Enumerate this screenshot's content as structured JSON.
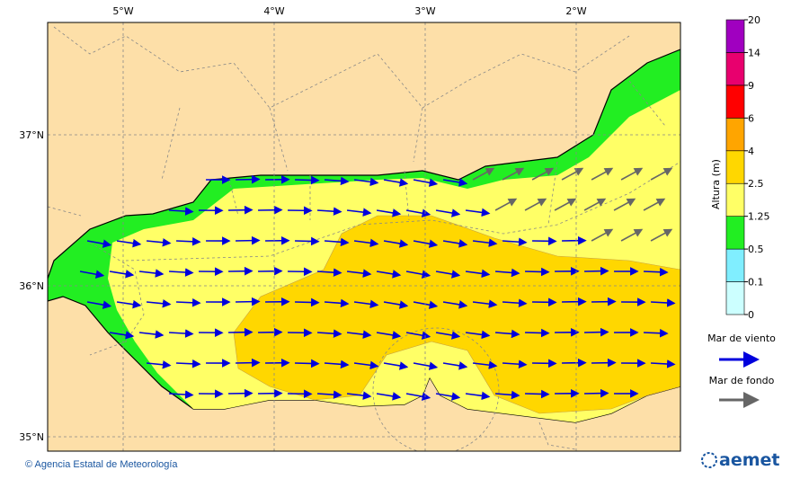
{
  "map": {
    "lon_labels": [
      "5°W",
      "4°W",
      "3°W",
      "2°W"
    ],
    "lat_labels": [
      "37°N",
      "36°N",
      "35°N"
    ],
    "colorbar": {
      "title": "Altura (m)",
      "levels": [
        0,
        0.1,
        0.5,
        1.25,
        2.5,
        4,
        6,
        9,
        14,
        20
      ],
      "colors": [
        "#ccffff",
        "#80eeff",
        "#22ee22",
        "#ffff66",
        "#ffd700",
        "#ffa500",
        "#ff0000",
        "#e8006e",
        "#a000c0"
      ]
    },
    "legend": {
      "wind_sea": "Mar de viento",
      "swell": "Mar de fondo"
    },
    "credit": "© Agencia Estatal de Meteorología",
    "logo": "aemet"
  }
}
